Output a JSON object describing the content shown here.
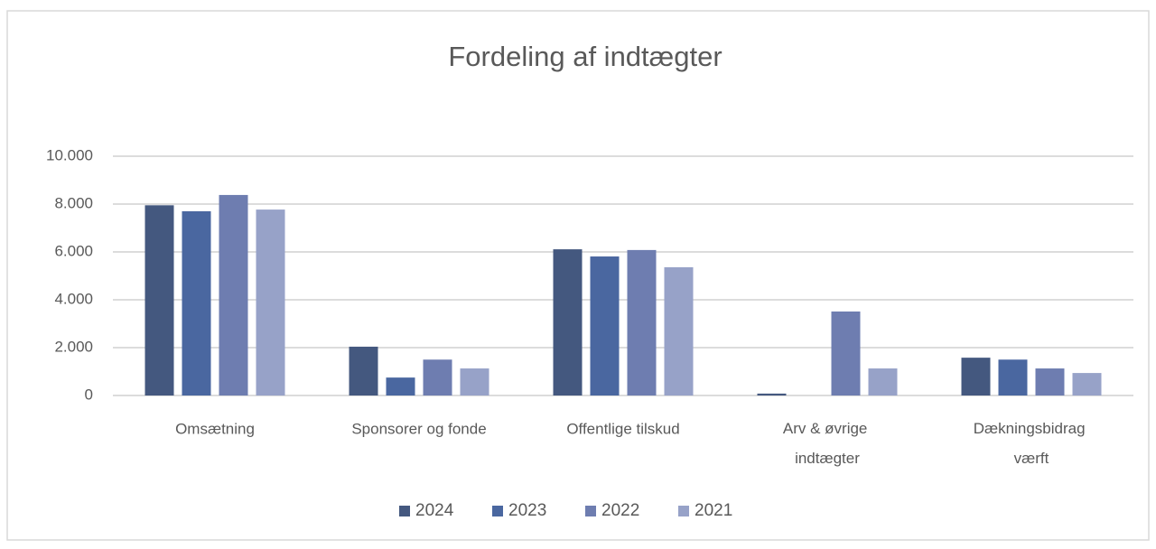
{
  "chart_data": {
    "type": "bar",
    "title": "Fordeling af indtægter",
    "categories": [
      "Omsætning",
      "Sponsorer og fonde",
      "Offentlige tilskud",
      "Arv & øvrige indtægter",
      "Dækningsbidrag værft"
    ],
    "series": [
      {
        "name": "2024",
        "color": "#44587f",
        "values": [
          7950,
          2040,
          6110,
          80,
          1580
        ]
      },
      {
        "name": "2023",
        "color": "#4a67a0",
        "values": [
          7700,
          750,
          5810,
          0,
          1500
        ]
      },
      {
        "name": "2022",
        "color": "#6e7db0",
        "values": [
          8380,
          1500,
          6080,
          3510,
          1130
        ]
      },
      {
        "name": "2021",
        "color": "#97a2c8",
        "values": [
          7770,
          1130,
          5360,
          1130,
          940
        ]
      }
    ],
    "ylim": [
      0,
      10000
    ],
    "yticks": [
      0,
      {
        "value": 2000,
        "label": "2.000"
      },
      {
        "value": 4000,
        "label": "4.000"
      },
      {
        "value": 6000,
        "label": "6.000"
      },
      {
        "value": 8000,
        "label": "8.000"
      },
      {
        "value": 10000,
        "label": "10.000"
      }
    ],
    "grid": true,
    "legend": "bottom"
  }
}
